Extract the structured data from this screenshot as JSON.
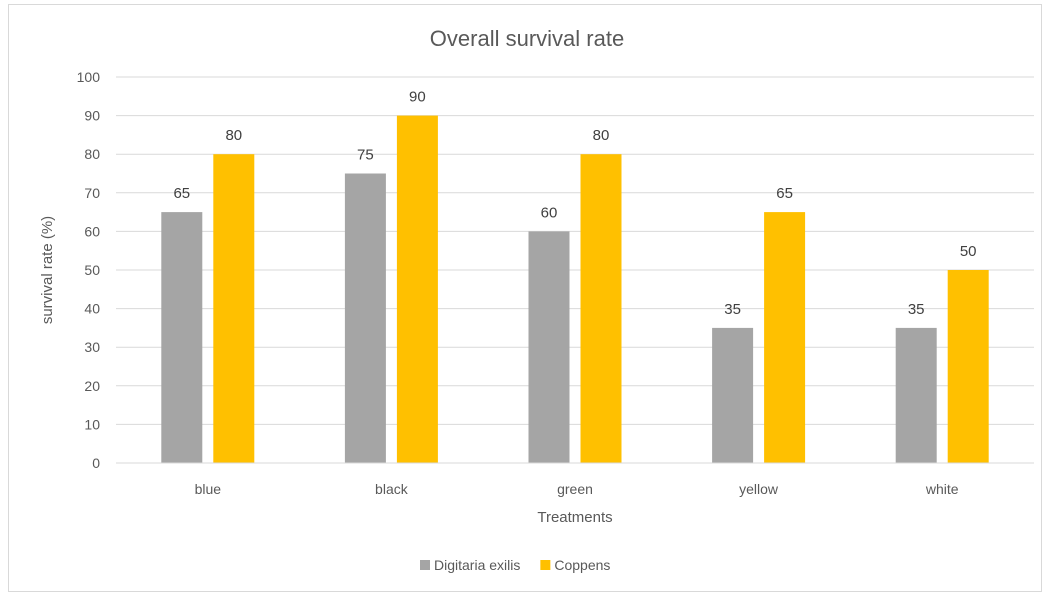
{
  "chart_data": {
    "type": "bar",
    "title": "Overall survival rate",
    "xlabel": "Treatments",
    "ylabel": "survival rate (%)",
    "categories": [
      "blue",
      "black",
      "green",
      "yellow",
      "white"
    ],
    "series": [
      {
        "name": "Digitaria exilis",
        "color": "#a5a5a5",
        "values": [
          65,
          75,
          60,
          35,
          35
        ]
      },
      {
        "name": "Coppens",
        "color": "#ffc000",
        "values": [
          80,
          90,
          80,
          65,
          50
        ]
      }
    ],
    "ylim": [
      0,
      100
    ],
    "yticks": [
      0,
      10,
      20,
      30,
      40,
      50,
      60,
      70,
      80,
      90,
      100
    ],
    "grid": true,
    "legend_position": "bottom"
  }
}
